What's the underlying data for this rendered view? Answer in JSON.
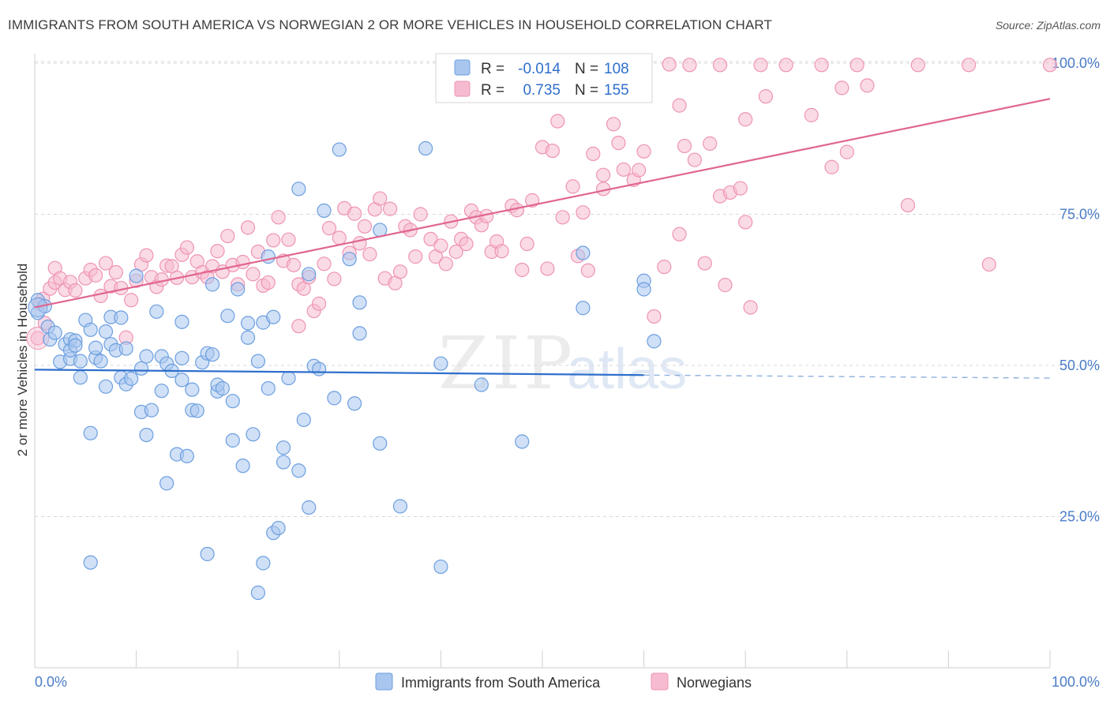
{
  "title": "IMMIGRANTS FROM SOUTH AMERICA VS NORWEGIAN 2 OR MORE VEHICLES IN HOUSEHOLD CORRELATION CHART",
  "source": "Source: ZipAtlas.com",
  "watermark": {
    "zip": "ZIP",
    "atlas": "atlas"
  },
  "colors": {
    "blue_fill": "#a9c6ee",
    "blue_stroke": "#6c9fe0",
    "blue_line": "#2f6fcc",
    "pink_fill": "#f6bbd0",
    "pink_stroke": "#ee94b4",
    "pink_line": "#e0668f",
    "tick_text": "#4a7cc7",
    "grid": "#d8d8d8"
  },
  "chart_data": {
    "type": "scatter",
    "title": "IMMIGRANTS FROM SOUTH AMERICA VS NORWEGIAN 2 OR MORE VEHICLES IN HOUSEHOLD CORRELATION CHART",
    "xlabel": "",
    "ylabel": "2 or more Vehicles in Household",
    "xlim": [
      0,
      100
    ],
    "ylim": [
      0,
      100
    ],
    "x_tick_labels": [
      "0.0%",
      "100.0%"
    ],
    "y_ticks": [
      25,
      50,
      75,
      100
    ],
    "y_tick_labels": [
      "25.0%",
      "50.0%",
      "75.0%",
      "100.0%"
    ],
    "grid": true,
    "legend_position": "top-center",
    "stats": [
      {
        "r_label": "R =",
        "r": "-0.014",
        "n_label": "N =",
        "n": "108"
      },
      {
        "r_label": "R =",
        "r": "0.735",
        "n_label": "N =",
        "n": "155"
      }
    ],
    "series": [
      {
        "name": "Immigrants from South America",
        "color": "#a9c6ee",
        "trend": {
          "x": [
            0,
            60
          ],
          "y": [
            49.3,
            48.4
          ],
          "dashed_to": [
            100,
            47.9
          ]
        },
        "points": [
          [
            0.3,
            58.7
          ],
          [
            0.3,
            60.8
          ],
          [
            1,
            59.8
          ],
          [
            1.3,
            56.4
          ],
          [
            1.5,
            54.3
          ],
          [
            2,
            55.4
          ],
          [
            2.5,
            50.6
          ],
          [
            3,
            53.5
          ],
          [
            3.5,
            51.1
          ],
          [
            3.5,
            54.3
          ],
          [
            3.5,
            52.5
          ],
          [
            4,
            54.1
          ],
          [
            4,
            53.3
          ],
          [
            4.5,
            48.0
          ],
          [
            4.5,
            50.7
          ],
          [
            5,
            57.5
          ],
          [
            5.5,
            55.9
          ],
          [
            5.5,
            38.8
          ],
          [
            5.5,
            17.4
          ],
          [
            6,
            51.3
          ],
          [
            6,
            52.9
          ],
          [
            6.5,
            50.7
          ],
          [
            7,
            46.5
          ],
          [
            7,
            55.6
          ],
          [
            7.5,
            53.5
          ],
          [
            7.5,
            58.0
          ],
          [
            8,
            52.5
          ],
          [
            8.5,
            57.9
          ],
          [
            8.5,
            48.0
          ],
          [
            9,
            52.8
          ],
          [
            9,
            46.9
          ],
          [
            9.5,
            47.8
          ],
          [
            10,
            64.8
          ],
          [
            10.5,
            49.5
          ],
          [
            10.5,
            42.3
          ],
          [
            11,
            51.5
          ],
          [
            11,
            38.5
          ],
          [
            11.5,
            42.6
          ],
          [
            12,
            58.9
          ],
          [
            12.5,
            51.5
          ],
          [
            12.5,
            45.8
          ],
          [
            13,
            30.5
          ],
          [
            13,
            50.3
          ],
          [
            13.5,
            49.1
          ],
          [
            14,
            35.3
          ],
          [
            14.5,
            57.2
          ],
          [
            14.5,
            47.6
          ],
          [
            14.5,
            51.2
          ],
          [
            15,
            35.0
          ],
          [
            15.5,
            42.6
          ],
          [
            15.5,
            46.0
          ],
          [
            16,
            42.5
          ],
          [
            16.5,
            50.5
          ],
          [
            17,
            18.8
          ],
          [
            17,
            52.0
          ],
          [
            17.5,
            51.8
          ],
          [
            17.5,
            63.4
          ],
          [
            18,
            45.7
          ],
          [
            18,
            46.8
          ],
          [
            18.5,
            46.2
          ],
          [
            19,
            58.2
          ],
          [
            19.5,
            44.1
          ],
          [
            19.5,
            37.6
          ],
          [
            20,
            62.6
          ],
          [
            20.5,
            33.4
          ],
          [
            21,
            57.0
          ],
          [
            21,
            54.6
          ],
          [
            21.5,
            38.6
          ],
          [
            22,
            50.7
          ],
          [
            22,
            12.4
          ],
          [
            22.5,
            17.3
          ],
          [
            22.5,
            57.1
          ],
          [
            23,
            68.0
          ],
          [
            23,
            46.2
          ],
          [
            23.5,
            58.0
          ],
          [
            23.5,
            22.3
          ],
          [
            24,
            23.1
          ],
          [
            24.5,
            34.0
          ],
          [
            24.5,
            36.4
          ],
          [
            25,
            47.9
          ],
          [
            26,
            79.2
          ],
          [
            26,
            32.6
          ],
          [
            26.5,
            41.0
          ],
          [
            27,
            26.5
          ],
          [
            27,
            65.1
          ],
          [
            27.5,
            49.9
          ],
          [
            28,
            49.4
          ],
          [
            28.5,
            75.6
          ],
          [
            29.5,
            44.6
          ],
          [
            30,
            85.7
          ],
          [
            31,
            67.6
          ],
          [
            31.5,
            43.7
          ],
          [
            32,
            60.4
          ],
          [
            32,
            55.3
          ],
          [
            34,
            72.4
          ],
          [
            34,
            37.1
          ],
          [
            36,
            26.7
          ],
          [
            38.5,
            85.9
          ],
          [
            40,
            16.7
          ],
          [
            40,
            50.3
          ],
          [
            44,
            46.8
          ],
          [
            48,
            37.4
          ],
          [
            54,
            68.6
          ],
          [
            54,
            59.5
          ],
          [
            60,
            64.0
          ],
          [
            60,
            62.6
          ],
          [
            61,
            54.0
          ]
        ]
      },
      {
        "name": "Norwegians",
        "color": "#f6bbd0",
        "trend": {
          "x": [
            0,
            100
          ],
          "y": [
            59.6,
            94.1
          ]
        },
        "points": [
          [
            0.3,
            54.5
          ],
          [
            0.5,
            60.2
          ],
          [
            0.8,
            61.0
          ],
          [
            1,
            57.0
          ],
          [
            1.5,
            62.7
          ],
          [
            2,
            63.7
          ],
          [
            2,
            66.1
          ],
          [
            2.5,
            64.4
          ],
          [
            3,
            62.5
          ],
          [
            3.5,
            63.8
          ],
          [
            4,
            62.4
          ],
          [
            5,
            64.4
          ],
          [
            5.5,
            65.8
          ],
          [
            6,
            64.9
          ],
          [
            6.5,
            61.5
          ],
          [
            7,
            66.9
          ],
          [
            7.5,
            63.1
          ],
          [
            8,
            65.4
          ],
          [
            8.5,
            62.8
          ],
          [
            9,
            54.6
          ],
          [
            9.5,
            60.8
          ],
          [
            10,
            64.0
          ],
          [
            10.5,
            66.7
          ],
          [
            11,
            68.2
          ],
          [
            11.5,
            64.6
          ],
          [
            12,
            63.0
          ],
          [
            12.5,
            64.2
          ],
          [
            13,
            66.5
          ],
          [
            13.5,
            66.4
          ],
          [
            14,
            64.5
          ],
          [
            14.5,
            68.3
          ],
          [
            15,
            69.5
          ],
          [
            15.5,
            64.6
          ],
          [
            16,
            67.2
          ],
          [
            16.5,
            65.4
          ],
          [
            17,
            64.6
          ],
          [
            17.5,
            66.4
          ],
          [
            18,
            68.9
          ],
          [
            18.5,
            65.5
          ],
          [
            19,
            71.4
          ],
          [
            19.5,
            66.6
          ],
          [
            20,
            63.4
          ],
          [
            20.5,
            67.1
          ],
          [
            21,
            72.8
          ],
          [
            21.5,
            65.1
          ],
          [
            22,
            68.8
          ],
          [
            22.5,
            63.2
          ],
          [
            23,
            63.7
          ],
          [
            23.5,
            70.7
          ],
          [
            24,
            74.5
          ],
          [
            24.5,
            67.3
          ],
          [
            25,
            70.8
          ],
          [
            25.5,
            66.6
          ],
          [
            26,
            63.4
          ],
          [
            26,
            56.5
          ],
          [
            26.5,
            62.7
          ],
          [
            27,
            64.6
          ],
          [
            27.5,
            59.0
          ],
          [
            28,
            60.2
          ],
          [
            28.5,
            66.8
          ],
          [
            29,
            72.7
          ],
          [
            29.5,
            64.3
          ],
          [
            30,
            71.1
          ],
          [
            30.5,
            76.0
          ],
          [
            31,
            68.6
          ],
          [
            31.5,
            75.1
          ],
          [
            32,
            70.2
          ],
          [
            32.5,
            73.0
          ],
          [
            33,
            68.4
          ],
          [
            33.5,
            75.8
          ],
          [
            34,
            77.6
          ],
          [
            34.5,
            64.4
          ],
          [
            35,
            75.9
          ],
          [
            35.5,
            63.6
          ],
          [
            36,
            65.5
          ],
          [
            36.5,
            73.0
          ],
          [
            37,
            72.4
          ],
          [
            37.5,
            68.0
          ],
          [
            38,
            75.0
          ],
          [
            39,
            70.9
          ],
          [
            39.5,
            68.0
          ],
          [
            40,
            69.8
          ],
          [
            40.5,
            66.8
          ],
          [
            41,
            73.8
          ],
          [
            41.5,
            68.8
          ],
          [
            42,
            70.9
          ],
          [
            42.5,
            70.1
          ],
          [
            43,
            75.6
          ],
          [
            43.5,
            74.5
          ],
          [
            44,
            73.2
          ],
          [
            44.5,
            74.7
          ],
          [
            45,
            68.8
          ],
          [
            45.5,
            70.5
          ],
          [
            46,
            68.9
          ],
          [
            47,
            76.4
          ],
          [
            47.5,
            75.7
          ],
          [
            48,
            65.8
          ],
          [
            48.5,
            70.1
          ],
          [
            49,
            77.3
          ],
          [
            50,
            86.1
          ],
          [
            50.5,
            66.0
          ],
          [
            51,
            85.5
          ],
          [
            51.5,
            90.4
          ],
          [
            52,
            74.5
          ],
          [
            53,
            79.6
          ],
          [
            53.5,
            68.1
          ],
          [
            54,
            75.3
          ],
          [
            54.5,
            65.7
          ],
          [
            55,
            85.0
          ],
          [
            56,
            79.2
          ],
          [
            56,
            81.5
          ],
          [
            57,
            89.9
          ],
          [
            57.5,
            86.8
          ],
          [
            58,
            82.4
          ],
          [
            59,
            80.7
          ],
          [
            59.5,
            82.3
          ],
          [
            60,
            85.4
          ],
          [
            60,
            99.7
          ],
          [
            61,
            58.1
          ],
          [
            62,
            66.3
          ],
          [
            62.5,
            99.8
          ],
          [
            63.5,
            71.7
          ],
          [
            63.5,
            93.0
          ],
          [
            64,
            86.3
          ],
          [
            64.5,
            99.7
          ],
          [
            65,
            84.0
          ],
          [
            66,
            66.9
          ],
          [
            66.5,
            86.7
          ],
          [
            67.5,
            78.0
          ],
          [
            67.5,
            99.7
          ],
          [
            68,
            63.3
          ],
          [
            68.5,
            78.6
          ],
          [
            69.5,
            79.3
          ],
          [
            70,
            90.7
          ],
          [
            70,
            73.7
          ],
          [
            70.5,
            59.6
          ],
          [
            71.5,
            99.7
          ],
          [
            72,
            94.5
          ],
          [
            74,
            99.7
          ],
          [
            76.5,
            91.4
          ],
          [
            77.5,
            99.7
          ],
          [
            78.5,
            82.8
          ],
          [
            79.5,
            95.9
          ],
          [
            80,
            85.3
          ],
          [
            81,
            99.7
          ],
          [
            82,
            96.3
          ],
          [
            86,
            76.5
          ],
          [
            87,
            99.7
          ],
          [
            92,
            99.7
          ],
          [
            94,
            66.7
          ],
          [
            100,
            99.7
          ]
        ]
      }
    ]
  },
  "legend": {
    "series1": "Immigrants from South America",
    "series2": "Norwegians"
  }
}
